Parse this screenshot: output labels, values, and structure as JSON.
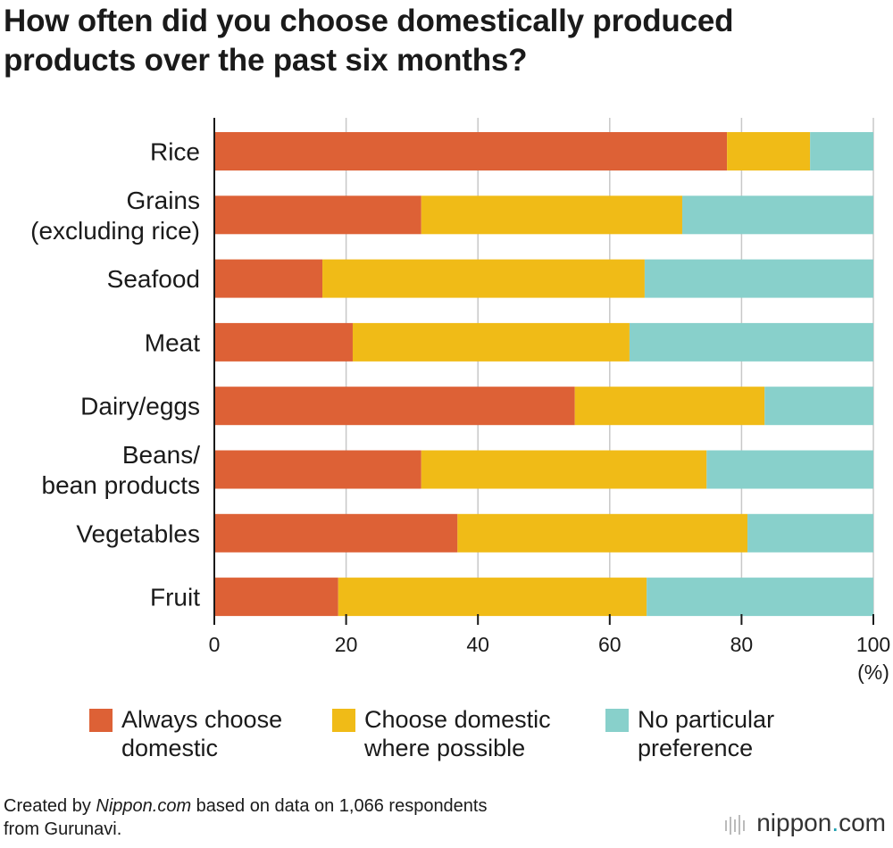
{
  "title": [
    "How often did you choose domestically produced",
    "products over the past six months?"
  ],
  "colors": {
    "always": "#dd6136",
    "possible": "#f0bb17",
    "none": "#88d0cb",
    "grid": "#c8c8c8",
    "axis": "#1a1a1a",
    "text": "#1a1a1a"
  },
  "chart_data": {
    "type": "bar",
    "orientation": "horizontal",
    "stacked": true,
    "categories": [
      [
        "Rice"
      ],
      [
        "Grains",
        "(excluding rice)"
      ],
      [
        "Seafood"
      ],
      [
        "Meat"
      ],
      [
        "Dairy/eggs"
      ],
      [
        "Beans/",
        "bean products"
      ],
      [
        "Vegetables"
      ],
      [
        "Fruit"
      ]
    ],
    "series": [
      {
        "name": "Always choose domestic",
        "color_key": "always",
        "values": [
          77.8,
          31.4,
          16.4,
          21.0,
          54.7,
          31.4,
          36.9,
          18.8
        ]
      },
      {
        "name": "Choose domestic where possible",
        "color_key": "possible",
        "values": [
          12.6,
          39.6,
          48.9,
          42.0,
          28.8,
          43.3,
          44.0,
          46.8
        ]
      },
      {
        "name": "No particular preference",
        "color_key": "none",
        "values": [
          9.6,
          29.0,
          34.7,
          37.0,
          16.5,
          25.3,
          19.1,
          34.4
        ]
      }
    ],
    "xlim": [
      0,
      100
    ],
    "xticks": [
      "0",
      "20",
      "40",
      "60",
      "80",
      "100"
    ],
    "xunit": "(%)",
    "grid": true,
    "legend_position": "bottom"
  },
  "legend": [
    {
      "key": "always",
      "lines": [
        "Always choose",
        "domestic"
      ]
    },
    {
      "key": "possible",
      "lines": [
        "Choose domestic",
        "where possible"
      ]
    },
    {
      "key": "none",
      "lines": [
        "No particular",
        "preference"
      ]
    }
  ],
  "footer": {
    "prefix": "Created by ",
    "source": "Nippon.com",
    "suffix": " based on data on 1,066 respondents",
    "line2": "from Gurunavi."
  },
  "logo": {
    "name": "nippon",
    "dot": ".",
    "tld": "com"
  }
}
